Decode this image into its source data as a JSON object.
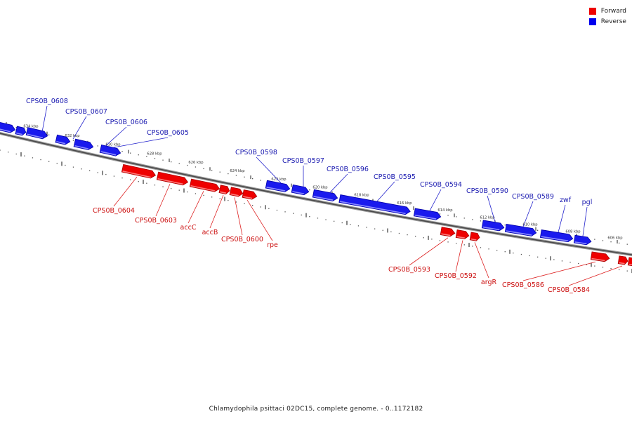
{
  "legend": {
    "forward_label": "Forward",
    "reverse_label": "Reverse",
    "forward_color": "#ee0000",
    "reverse_color": "#0000ee"
  },
  "caption": "Chlamydophila psittaci 02DC15, complete genome. - 0..1172182",
  "axis_ticks": [
    "634 kbp",
    "632 kbp",
    "630 kbp",
    "628 kbp",
    "626 kbp",
    "624 kbp",
    "622 kbp",
    "620 kbp",
    "618 kbp",
    "616 kbp",
    "614 kbp",
    "612 kbp",
    "610 kbp",
    "608 kbp",
    "606 kbp"
  ],
  "reverse_genes": [
    {
      "name": ""
    },
    {
      "name": ""
    },
    {
      "name": "CPS0B_0608"
    },
    {
      "name": ""
    },
    {
      "name": "CPS0B_0607"
    },
    {
      "name": "CPS0B_0606"
    },
    {
      "name": "CPS0B_0605"
    },
    {
      "name": "CPS0B_0598"
    },
    {
      "name": "CPS0B_0597"
    },
    {
      "name": "CPS0B_0596"
    },
    {
      "name": "CPS0B_0595"
    },
    {
      "name": "CPS0B_0594"
    },
    {
      "name": "CPS0B_0590"
    },
    {
      "name": "CPS0B_0589"
    },
    {
      "name": "zwf"
    },
    {
      "name": "pgl"
    }
  ],
  "forward_genes": [
    {
      "name": "CPS0B_0604"
    },
    {
      "name": "CPS0B_0603"
    },
    {
      "name": "accC"
    },
    {
      "name": "accB"
    },
    {
      "name": "CPS0B_0600"
    },
    {
      "name": "rpe"
    },
    {
      "name": "CPS0B_0593"
    },
    {
      "name": "CPS0B_0592"
    },
    {
      "name": "argR"
    },
    {
      "name": "CPS0B_0586"
    },
    {
      "name": "CPS0B_0584"
    },
    {
      "name": ""
    }
  ]
}
